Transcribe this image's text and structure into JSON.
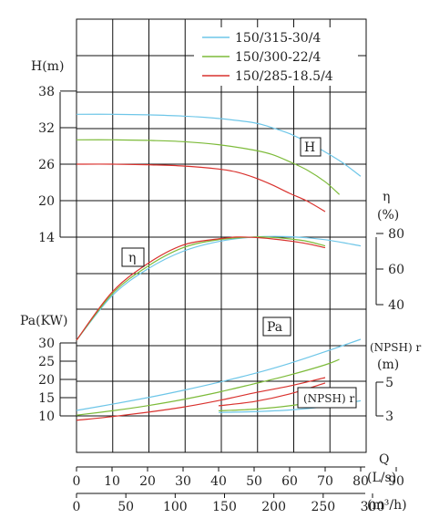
{
  "chart_data": {
    "type": "line",
    "legend": {
      "placement": "top-right",
      "entries": [
        {
          "name": "150/315-30/4",
          "color": "#6ec6e8"
        },
        {
          "name": "150/300-22/4",
          "color": "#7dbb3a"
        },
        {
          "name": "150/285-18.5/4",
          "color": "#d9322e"
        }
      ]
    },
    "x_axis": {
      "label": "Q",
      "ls": {
        "unit": "(L/s)",
        "ticks": [
          "0",
          "10",
          "20",
          "30",
          "40",
          "50",
          "60",
          "70",
          "80",
          "90"
        ],
        "range": [
          0,
          97
        ]
      },
      "m3h": {
        "unit": "(m³/h)",
        "ticks": [
          "0",
          "50",
          "100",
          "150",
          "200",
          "250",
          "300"
        ],
        "range": [
          0,
          349
        ]
      }
    },
    "grid": true,
    "head": {
      "label": "H(m)",
      "ticks": [
        "38",
        "32",
        "26",
        "20",
        "14"
      ],
      "ylim": [
        14,
        38
      ],
      "tag": "H",
      "series": [
        {
          "name": "150/315-30/4",
          "x": [
            0,
            10,
            20,
            30,
            40,
            50,
            55,
            60,
            65,
            70,
            75,
            80
          ],
          "y": [
            34.2,
            34.2,
            34.1,
            33.9,
            33.5,
            32.8,
            32.0,
            31.0,
            29.6,
            28.0,
            26.2,
            24.0
          ]
        },
        {
          "name": "150/300-22/4",
          "x": [
            0,
            10,
            20,
            30,
            40,
            50,
            55,
            60,
            65,
            70,
            74
          ],
          "y": [
            30.0,
            30.0,
            29.9,
            29.7,
            29.2,
            28.3,
            27.6,
            26.4,
            25.0,
            23.1,
            21.0
          ]
        },
        {
          "name": "150/285-18.5/4",
          "x": [
            0,
            10,
            20,
            30,
            40,
            45,
            50,
            55,
            60,
            65,
            70
          ],
          "y": [
            26.0,
            26.0,
            25.9,
            25.7,
            25.2,
            24.7,
            23.8,
            22.6,
            21.2,
            19.9,
            18.2
          ]
        }
      ]
    },
    "efficiency": {
      "label": "η",
      "unit": "(%)",
      "ticks": [
        "80",
        "60",
        "40"
      ],
      "ylim": [
        40,
        80
      ],
      "tag": "η",
      "series": [
        {
          "name": "150/315-30/4",
          "x": [
            0,
            10,
            20,
            30,
            40,
            50,
            60,
            70,
            80
          ],
          "y": [
            20,
            45,
            60,
            70,
            75.5,
            78,
            78.2,
            76.5,
            73
          ]
        },
        {
          "name": "150/300-22/4",
          "x": [
            0,
            10,
            20,
            30,
            40,
            50,
            55,
            60,
            65,
            70
          ],
          "y": [
            20,
            46,
            61.5,
            72,
            76.5,
            78,
            77.8,
            77,
            75.6,
            73
          ]
        },
        {
          "name": "150/285-18.5/4",
          "x": [
            0,
            10,
            20,
            30,
            40,
            45,
            50,
            55,
            60,
            65,
            70
          ],
          "y": [
            20,
            47,
            63,
            73.5,
            77,
            78,
            77.8,
            77,
            75.8,
            74.2,
            72
          ]
        }
      ]
    },
    "power": {
      "label": "Pa(KW)",
      "ticks": [
        "30",
        "25",
        "20",
        "15",
        "10"
      ],
      "ylim": [
        10,
        30
      ],
      "tag": "Pa",
      "series": [
        {
          "name": "150/315-30/4",
          "x": [
            0,
            10,
            20,
            30,
            40,
            50,
            60,
            70,
            80
          ],
          "y": [
            11.5,
            13.2,
            15.0,
            17.0,
            19.2,
            21.6,
            24.4,
            27.6,
            31.0
          ]
        },
        {
          "name": "150/300-22/4",
          "x": [
            0,
            10,
            20,
            30,
            40,
            50,
            60,
            70,
            74
          ],
          "y": [
            10.2,
            11.4,
            12.8,
            14.5,
            16.5,
            18.8,
            21.2,
            24.0,
            25.5
          ]
        },
        {
          "name": "150/285-18.5/4",
          "x": [
            0,
            10,
            20,
            30,
            40,
            50,
            60,
            70
          ],
          "y": [
            8.8,
            9.8,
            11.0,
            12.4,
            14.2,
            16.3,
            18.2,
            20.5
          ]
        }
      ]
    },
    "npsh": {
      "label": "(NPSH) r",
      "unit": "(m)",
      "ticks": [
        "5",
        "3"
      ],
      "ylim": [
        3,
        5.5
      ],
      "tag": "(NPSH) r",
      "series": [
        {
          "name": "150/315-30/4",
          "x": [
            40,
            50,
            60,
            70,
            80
          ],
          "y": [
            3.2,
            3.25,
            3.35,
            3.55,
            3.9
          ]
        },
        {
          "name": "150/300-22/4",
          "x": [
            40,
            50,
            60,
            70
          ],
          "y": [
            3.3,
            3.4,
            3.6,
            3.95
          ]
        },
        {
          "name": "150/285-18.5/4",
          "x": [
            40,
            50,
            60,
            70
          ],
          "y": [
            3.6,
            3.85,
            4.3,
            4.95
          ]
        }
      ]
    }
  }
}
